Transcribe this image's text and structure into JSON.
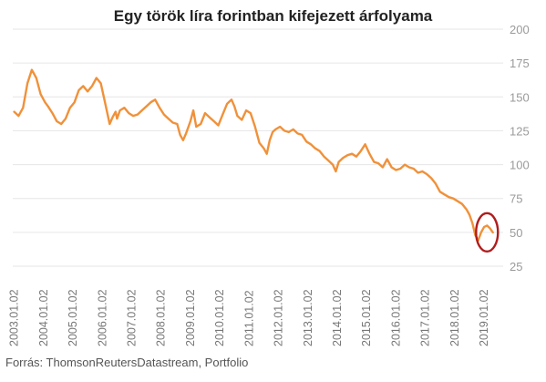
{
  "header": {
    "title": "Egy török líra forintban kifejezett árfolyama"
  },
  "footer": {
    "source": "Forrás: ThomsonReutersDatastream, Portfolio"
  },
  "colors": {
    "line": "#f0913a",
    "highlight": "#b01c1c",
    "grid": "#e6e6e6",
    "axis_text": "#9a9a9a"
  },
  "chart_data": {
    "type": "line",
    "title": "Egy török líra forintban kifejezett árfolyama",
    "xlabel": "",
    "ylabel": "",
    "ylim": [
      25,
      200
    ],
    "yticks": [
      25,
      50,
      75,
      100,
      125,
      150,
      175,
      200
    ],
    "y_axis_position": "right",
    "grid": true,
    "xticks": [
      "2003.01.02",
      "2004.01.02",
      "2005.01.02",
      "2006.01.02",
      "2007.01.02",
      "2008.01.02",
      "2009.01.02",
      "2010.01.02",
      "2011.01.02",
      "2012.01.02",
      "2013.01.02",
      "2014.01.02",
      "2015.01.02",
      "2016.01.02",
      "2017.01.02",
      "2018.01.02",
      "2019.01.02"
    ],
    "x": [
      2003.0,
      2003.15,
      2003.3,
      2003.45,
      2003.6,
      2003.75,
      2003.9,
      2004.05,
      2004.15,
      2004.3,
      2004.45,
      2004.6,
      2004.75,
      2004.9,
      2005.05,
      2005.2,
      2005.35,
      2005.5,
      2005.65,
      2005.8,
      2005.95,
      2006.1,
      2006.25,
      2006.35,
      2006.45,
      2006.5,
      2006.6,
      2006.75,
      2006.9,
      2007.05,
      2007.2,
      2007.35,
      2007.5,
      2007.65,
      2007.8,
      2007.95,
      2008.1,
      2008.25,
      2008.4,
      2008.55,
      2008.65,
      2008.75,
      2008.85,
      2009.0,
      2009.1,
      2009.2,
      2009.35,
      2009.5,
      2009.65,
      2009.8,
      2009.95,
      2010.1,
      2010.25,
      2010.4,
      2010.5,
      2010.6,
      2010.75,
      2010.9,
      2011.05,
      2011.2,
      2011.35,
      2011.5,
      2011.6,
      2011.7,
      2011.8,
      2011.9,
      2012.05,
      2012.2,
      2012.35,
      2012.5,
      2012.65,
      2012.8,
      2012.95,
      2013.1,
      2013.25,
      2013.4,
      2013.55,
      2013.7,
      2013.85,
      2013.95,
      2014.05,
      2014.2,
      2014.35,
      2014.5,
      2014.65,
      2014.8,
      2014.95,
      2015.1,
      2015.25,
      2015.4,
      2015.55,
      2015.7,
      2015.85,
      2016.0,
      2016.15,
      2016.3,
      2016.45,
      2016.6,
      2016.75,
      2016.9,
      2017.05,
      2017.2,
      2017.35,
      2017.5,
      2017.65,
      2017.8,
      2017.95,
      2018.1,
      2018.25,
      2018.4,
      2018.5,
      2018.6,
      2018.7,
      2018.8,
      2018.9,
      2019.0,
      2019.1,
      2019.2,
      2019.3
    ],
    "series": [
      {
        "values": [
          139,
          136,
          142,
          160,
          170,
          164,
          152,
          146,
          143,
          138,
          132,
          130,
          134,
          142,
          146,
          155,
          158,
          154,
          158,
          164,
          160,
          145,
          130,
          135,
          139,
          134,
          140,
          142,
          138,
          136,
          137,
          140,
          143,
          146,
          148,
          142,
          137,
          134,
          131,
          130,
          122,
          118,
          123,
          132,
          140,
          128,
          130,
          138,
          135,
          132,
          129,
          137,
          145,
          148,
          143,
          136,
          133,
          140,
          138,
          128,
          116,
          112,
          108,
          118,
          124,
          126,
          128,
          125,
          124,
          126,
          123,
          122,
          117,
          115,
          112,
          110,
          106,
          103,
          100,
          95,
          102,
          105,
          107,
          108,
          106,
          110,
          115,
          108,
          102,
          101,
          98,
          104,
          98,
          96,
          97,
          100,
          98,
          97,
          94,
          95,
          93,
          90,
          86,
          80,
          78,
          76,
          75,
          73,
          71,
          67,
          63,
          57,
          48,
          44,
          50,
          54,
          55,
          53,
          50
        ]
      }
    ],
    "highlight": {
      "shape": "ellipse",
      "x": 2019.1,
      "y": 50
    }
  }
}
